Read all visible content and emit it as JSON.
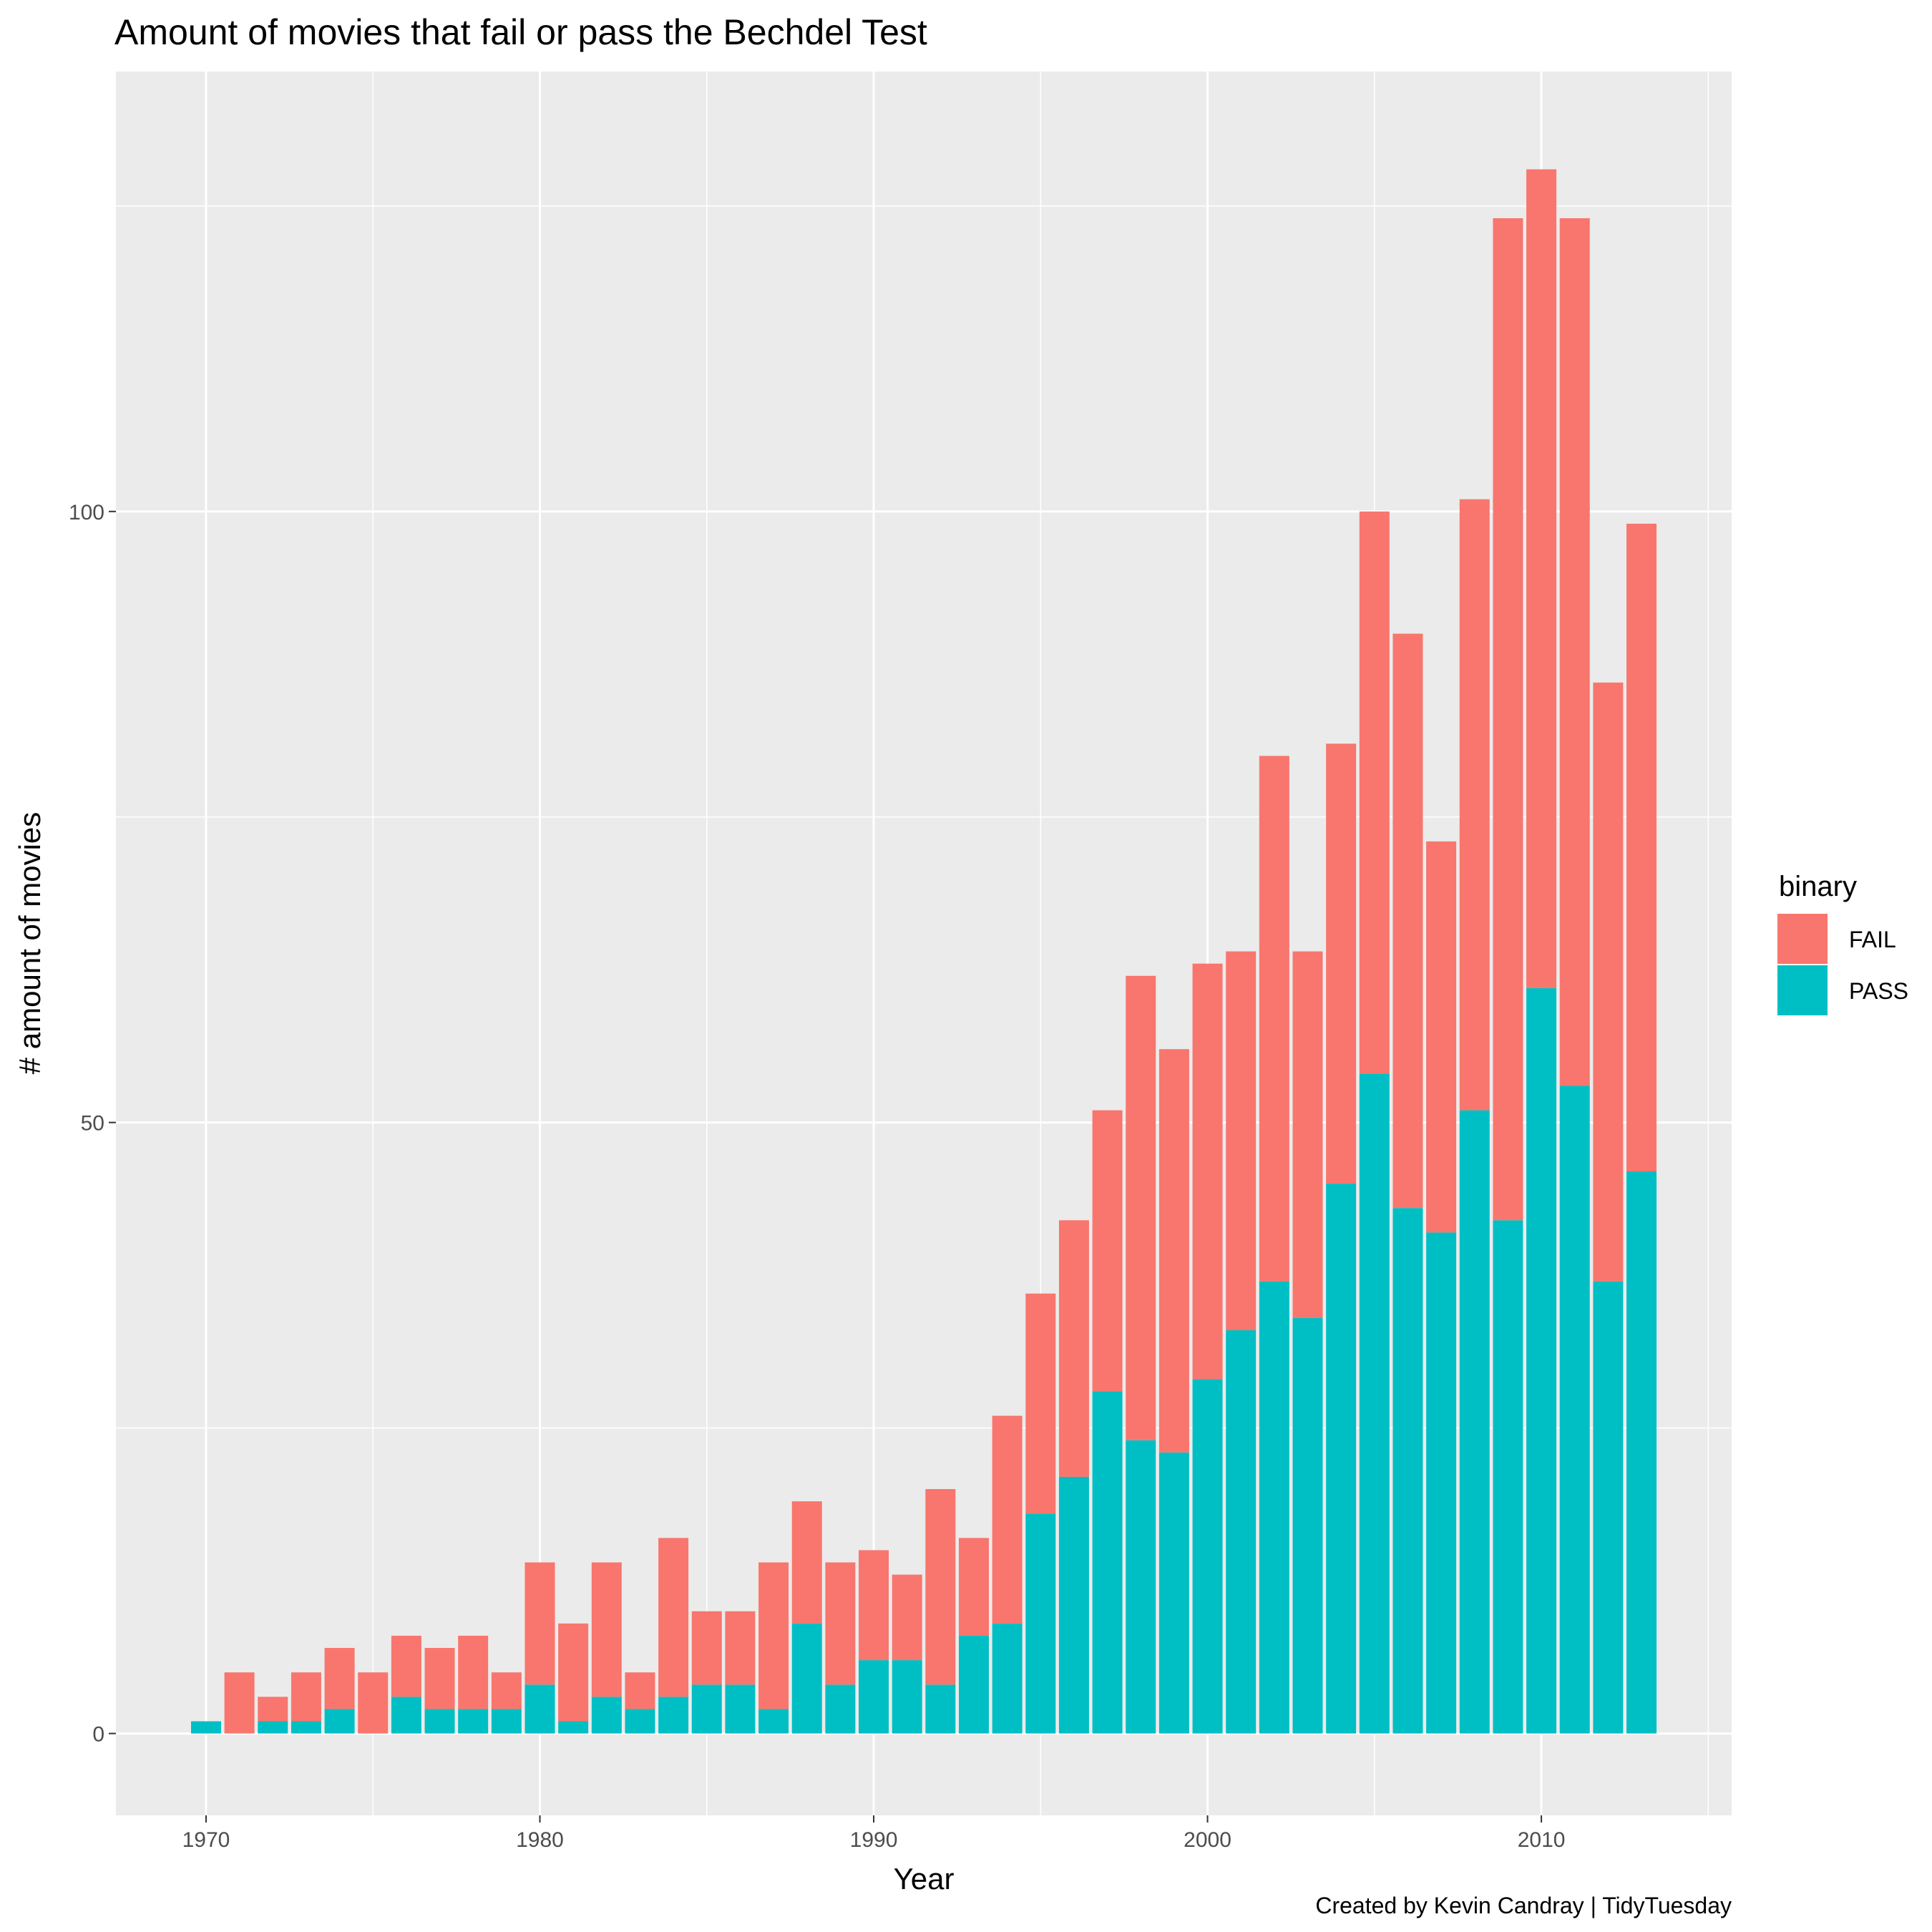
{
  "chart_data": {
    "type": "bar",
    "stacked": true,
    "title": "Amount of movies that fail or pass the Bechdel Test",
    "xlabel": "Year",
    "ylabel": "# amount of movies",
    "caption": "Created by Kevin Candray | TidyTuesday",
    "xlim": [
      1967.3,
      2015.7
    ],
    "ylim": [
      -6.7,
      136
    ],
    "x_ticks": [
      1970,
      1980,
      1990,
      2000,
      2010
    ],
    "y_ticks": [
      0,
      50,
      100
    ],
    "grid": true,
    "legend": {
      "title": "binary",
      "position": "right"
    },
    "x": [
      1970,
      1971,
      1972,
      1973,
      1974,
      1975,
      1976,
      1977,
      1978,
      1979,
      1980,
      1981,
      1982,
      1983,
      1984,
      1985,
      1986,
      1987,
      1988,
      1989,
      1990,
      1991,
      1992,
      1993,
      1994,
      1995,
      1996,
      1997,
      1998,
      1999,
      2000,
      2001,
      2002,
      2003,
      2004,
      2005,
      2006,
      2007,
      2008,
      2009,
      2010,
      2011,
      2012,
      2013
    ],
    "series": [
      {
        "name": "PASS",
        "color": "#00BFC4",
        "values": [
          1,
          0,
          1,
          1,
          2,
          0,
          3,
          2,
          2,
          2,
          4,
          1,
          3,
          2,
          3,
          4,
          4,
          2,
          9,
          4,
          6,
          6,
          4,
          8,
          9,
          18,
          21,
          28,
          24,
          23,
          29,
          33,
          37,
          34,
          45,
          54,
          43,
          41,
          51,
          42,
          61,
          53,
          37,
          46
        ]
      },
      {
        "name": "FAIL",
        "color": "#F8766D",
        "values": [
          0,
          5,
          2,
          4,
          5,
          5,
          5,
          5,
          6,
          3,
          10,
          8,
          11,
          3,
          13,
          6,
          6,
          12,
          10,
          10,
          9,
          7,
          16,
          8,
          17,
          18,
          21,
          23,
          38,
          33,
          34,
          31,
          43,
          30,
          36,
          46,
          47,
          32,
          50,
          82,
          67,
          71,
          49,
          53
        ]
      }
    ]
  }
}
